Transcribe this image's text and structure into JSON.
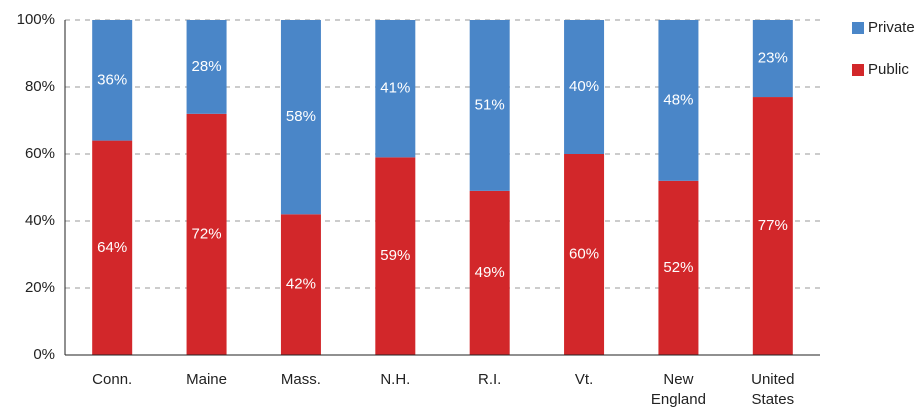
{
  "chart_data": {
    "type": "stacked_bar",
    "categories": [
      "Conn.",
      "Maine",
      "Mass.",
      "N.H.",
      "R.I.",
      "Vt.",
      "New England",
      "United States"
    ],
    "series": [
      {
        "name": "Private",
        "color": "#4a86c8",
        "values": [
          36,
          28,
          58,
          41,
          51,
          40,
          48,
          23
        ],
        "value_labels": [
          "36%",
          "28%",
          "58%",
          "41%",
          "51%",
          "40%",
          "48%",
          "23%"
        ]
      },
      {
        "name": "Public",
        "color": "#d2272a",
        "values": [
          64,
          72,
          42,
          59,
          49,
          60,
          52,
          77
        ],
        "value_labels": [
          "64%",
          "72%",
          "42%",
          "59%",
          "49%",
          "60%",
          "52%",
          "77%"
        ]
      }
    ],
    "ylim": [
      0,
      100
    ],
    "yticks": [
      {
        "value": 0,
        "label": "0%"
      },
      {
        "value": 20,
        "label": "20%"
      },
      {
        "value": 40,
        "label": "40%"
      },
      {
        "value": 60,
        "label": "60%"
      },
      {
        "value": 80,
        "label": "80%"
      },
      {
        "value": 100,
        "label": "100%"
      }
    ],
    "grid": true,
    "legend": "right"
  }
}
